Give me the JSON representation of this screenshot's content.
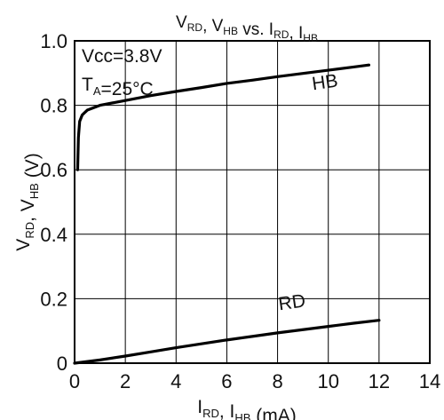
{
  "chart_data": {
    "type": "line",
    "title": {
      "parts": [
        {
          "text": "V",
          "sub": "RD"
        },
        {
          "text": ", V",
          "sub": "HB"
        },
        {
          "text": " vs. I",
          "sub": "RD"
        },
        {
          "text": ", I",
          "sub": "HB"
        }
      ]
    },
    "xlabel": {
      "parts": [
        {
          "text": "I",
          "sub": "RD"
        },
        {
          "text": ", I",
          "sub": "HB"
        },
        {
          "text": " (mA)",
          "sub": ""
        }
      ]
    },
    "ylabel": {
      "parts": [
        {
          "text": "V",
          "sub": "RD"
        },
        {
          "text": ", V",
          "sub": "HB"
        },
        {
          "text": " (V)",
          "sub": ""
        }
      ]
    },
    "xlim": [
      0,
      14
    ],
    "ylim": [
      0,
      1.0
    ],
    "x_ticks": [
      "0",
      "2",
      "4",
      "6",
      "8",
      "10",
      "12",
      "14"
    ],
    "y_ticks": [
      "0",
      "0.2",
      "0.4",
      "0.6",
      "0.8",
      "1.0"
    ],
    "grid": true,
    "annotations": {
      "conditions_line1": "Vcc=3.8V",
      "conditions_line2": {
        "parts": [
          {
            "text": "T",
            "sub": "A"
          },
          {
            "text": "=25°C",
            "sub": ""
          }
        ]
      }
    },
    "series": [
      {
        "name": "HB",
        "color": "#000000",
        "points": [
          [
            0.12,
            0.6
          ],
          [
            0.15,
            0.7
          ],
          [
            0.2,
            0.75
          ],
          [
            0.3,
            0.77
          ],
          [
            0.5,
            0.785
          ],
          [
            1.0,
            0.8
          ],
          [
            2.0,
            0.815
          ],
          [
            3.0,
            0.83
          ],
          [
            4.0,
            0.843
          ],
          [
            5.0,
            0.855
          ],
          [
            6.0,
            0.868
          ],
          [
            7.0,
            0.878
          ],
          [
            8.0,
            0.889
          ],
          [
            9.0,
            0.899
          ],
          [
            10.0,
            0.909
          ],
          [
            11.0,
            0.919
          ],
          [
            11.6,
            0.925
          ]
        ]
      },
      {
        "name": "RD",
        "color": "#000000",
        "points": [
          [
            0.0,
            0.0
          ],
          [
            1.0,
            0.01
          ],
          [
            2.0,
            0.022
          ],
          [
            3.0,
            0.035
          ],
          [
            4.0,
            0.048
          ],
          [
            5.0,
            0.06
          ],
          [
            6.0,
            0.072
          ],
          [
            7.0,
            0.083
          ],
          [
            8.0,
            0.094
          ],
          [
            9.0,
            0.104
          ],
          [
            10.0,
            0.114
          ],
          [
            11.0,
            0.124
          ],
          [
            12.0,
            0.133
          ]
        ]
      }
    ]
  }
}
